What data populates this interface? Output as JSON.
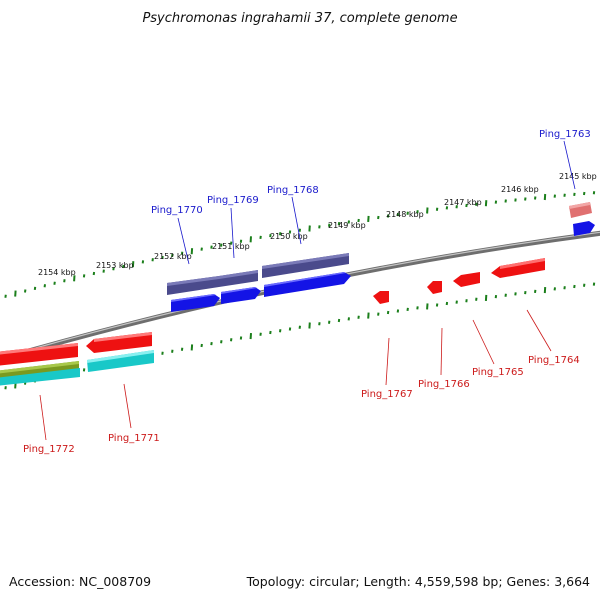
{
  "title": "Psychromonas ingrahamii 37, complete genome",
  "accession": "Accession: NC_008709",
  "summary": "Topology: circular; Length: 4,559,598 bp; Genes: 3,664",
  "scale_labels": [
    "2154 kbp",
    "2153 kbp",
    "2152 kbp",
    "2151 kbp",
    "2150 kbp",
    "2149 kbp",
    "2148 kbp",
    "2147 kbp",
    "2146 kbp",
    "2145 kbp"
  ],
  "genes_top": [
    "Ping_1770",
    "Ping_1769",
    "Ping_1768",
    "Ping_1763"
  ],
  "genes_bottom": [
    "Ping_1772",
    "Ping_1771",
    "Ping_1767",
    "Ping_1766",
    "Ping_1765",
    "Ping_1764"
  ],
  "colors": {
    "forward_label": "#1a1acc",
    "reverse_label": "#cc1a1a",
    "tick": "#1b7f1b",
    "backbone": "#8a8a8a",
    "cds_blue": "#1414e6",
    "cds_red": "#ee1111",
    "cds_purple": "#4a4a8c",
    "cds_cyan": "#19c8c8",
    "cds_olive": "#7a9a20",
    "cds_pink": "#e07070"
  }
}
